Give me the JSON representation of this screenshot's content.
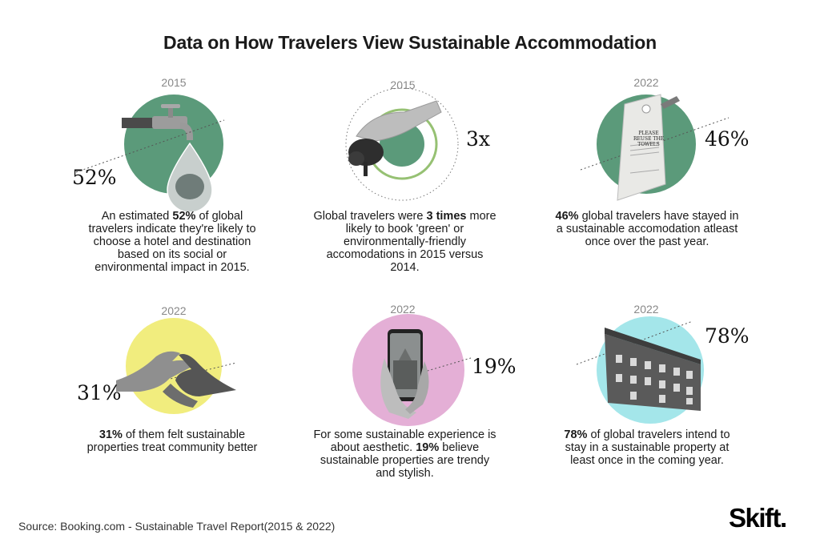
{
  "title": "Data on How Travelers View Sustainable Accommodation",
  "source": "Source: Booking.com - Sustainable Travel Report(2015 & 2022)",
  "logo": "Skift.",
  "colors": {
    "green": "#5b9a7a",
    "yellow": "#f1ed7e",
    "pink": "#e4afd6",
    "cyan": "#a4e6ea",
    "ring": "#96c173"
  },
  "chart_data": [
    {
      "type": "infographic-stat",
      "year": "2015",
      "value_label": "52%",
      "value": 52,
      "unit": "%",
      "pre": "An estimated ",
      "bold": "52%",
      "post": " of global travelers indicate they're likely to choose a hotel and destination based on its social or environmental impact in 2015."
    },
    {
      "type": "infographic-stat",
      "year": "2015",
      "value_label": "3x",
      "value": 3,
      "unit": "x",
      "pre": "Global travelers were ",
      "bold": "3 times",
      "post": " more likely to book 'green' or environmentally-friendly accomodations in 2015 versus 2014."
    },
    {
      "type": "infographic-stat",
      "year": "2022",
      "value_label": "46%",
      "value": 46,
      "unit": "%",
      "pre": "",
      "bold": "46%",
      "post": " global travelers have stayed in a sustainable accomodation atleast once over the past year.",
      "tag_text": "PLEASE REUSE THE TOWELS"
    },
    {
      "type": "infographic-stat",
      "year": "2022",
      "value_label": "31%",
      "value": 31,
      "unit": "%",
      "pre": "",
      "bold": "31%",
      "post": " of them felt sustainable properties treat community better"
    },
    {
      "type": "infographic-stat",
      "year": "2022",
      "value_label": "19%",
      "value": 19,
      "unit": "%",
      "pre": "For some sustainable experience is about aesthetic. ",
      "bold": "19%",
      "post": " believe sustainable properties are trendy and stylish."
    },
    {
      "type": "infographic-stat",
      "year": "2022",
      "value_label": "78%",
      "value": 78,
      "unit": "%",
      "pre": "",
      "bold": "78%",
      "post": " of global travelers intend to stay in a sustainable property at least once in the coming year."
    }
  ]
}
